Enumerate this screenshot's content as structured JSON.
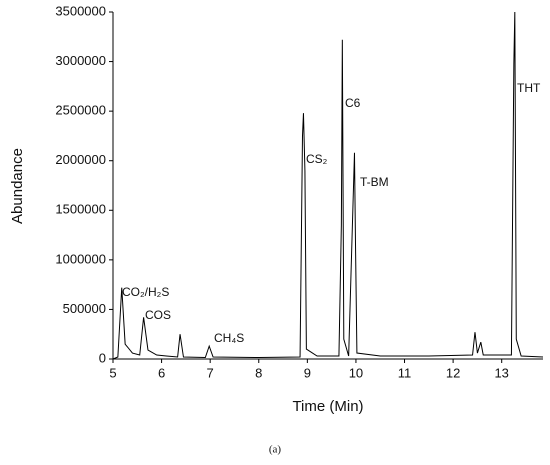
{
  "chart_data": {
    "type": "line",
    "x_label": "Time (Min)",
    "y_label": "Abundance",
    "caption": "(a)",
    "xlim": [
      5,
      13.85
    ],
    "xticks": [
      5,
      6,
      7,
      8,
      9,
      10,
      11,
      12,
      13
    ],
    "ylim": [
      0,
      3500000
    ],
    "yticks": [
      0,
      500000,
      1000000,
      1500000,
      2000000,
      2500000,
      3000000,
      3500000
    ],
    "annotations": [
      "CO₂/H₂S",
      "COS",
      "CH₄S",
      "CS₂",
      "C6",
      "T-BM",
      "THT"
    ],
    "series": [
      {
        "color": "#000000",
        "x": [
          5.0,
          5.1,
          5.18,
          5.25,
          5.4,
          5.55,
          5.63,
          5.72,
          5.9,
          6.1,
          6.33,
          6.38,
          6.45,
          6.9,
          6.98,
          7.06,
          8.0,
          8.85,
          8.9,
          8.92,
          8.95,
          8.98,
          9.2,
          9.65,
          9.7,
          9.72,
          9.75,
          9.85,
          9.97,
          9.99,
          10.02,
          10.5,
          11.5,
          12.4,
          12.45,
          12.5,
          12.57,
          12.62,
          13.2,
          13.25,
          13.27,
          13.3,
          13.4,
          13.85
        ],
        "values": [
          0,
          20000,
          720000,
          150000,
          60000,
          40000,
          420000,
          90000,
          40000,
          30000,
          20000,
          250000,
          20000,
          15000,
          130000,
          20000,
          15000,
          20000,
          2250000,
          2480000,
          1900000,
          100000,
          30000,
          30000,
          1350000,
          3220000,
          200000,
          30000,
          2080000,
          1200000,
          60000,
          30000,
          30000,
          40000,
          270000,
          60000,
          170000,
          40000,
          40000,
          2980000,
          3500000,
          200000,
          30000,
          20000
        ]
      }
    ]
  }
}
